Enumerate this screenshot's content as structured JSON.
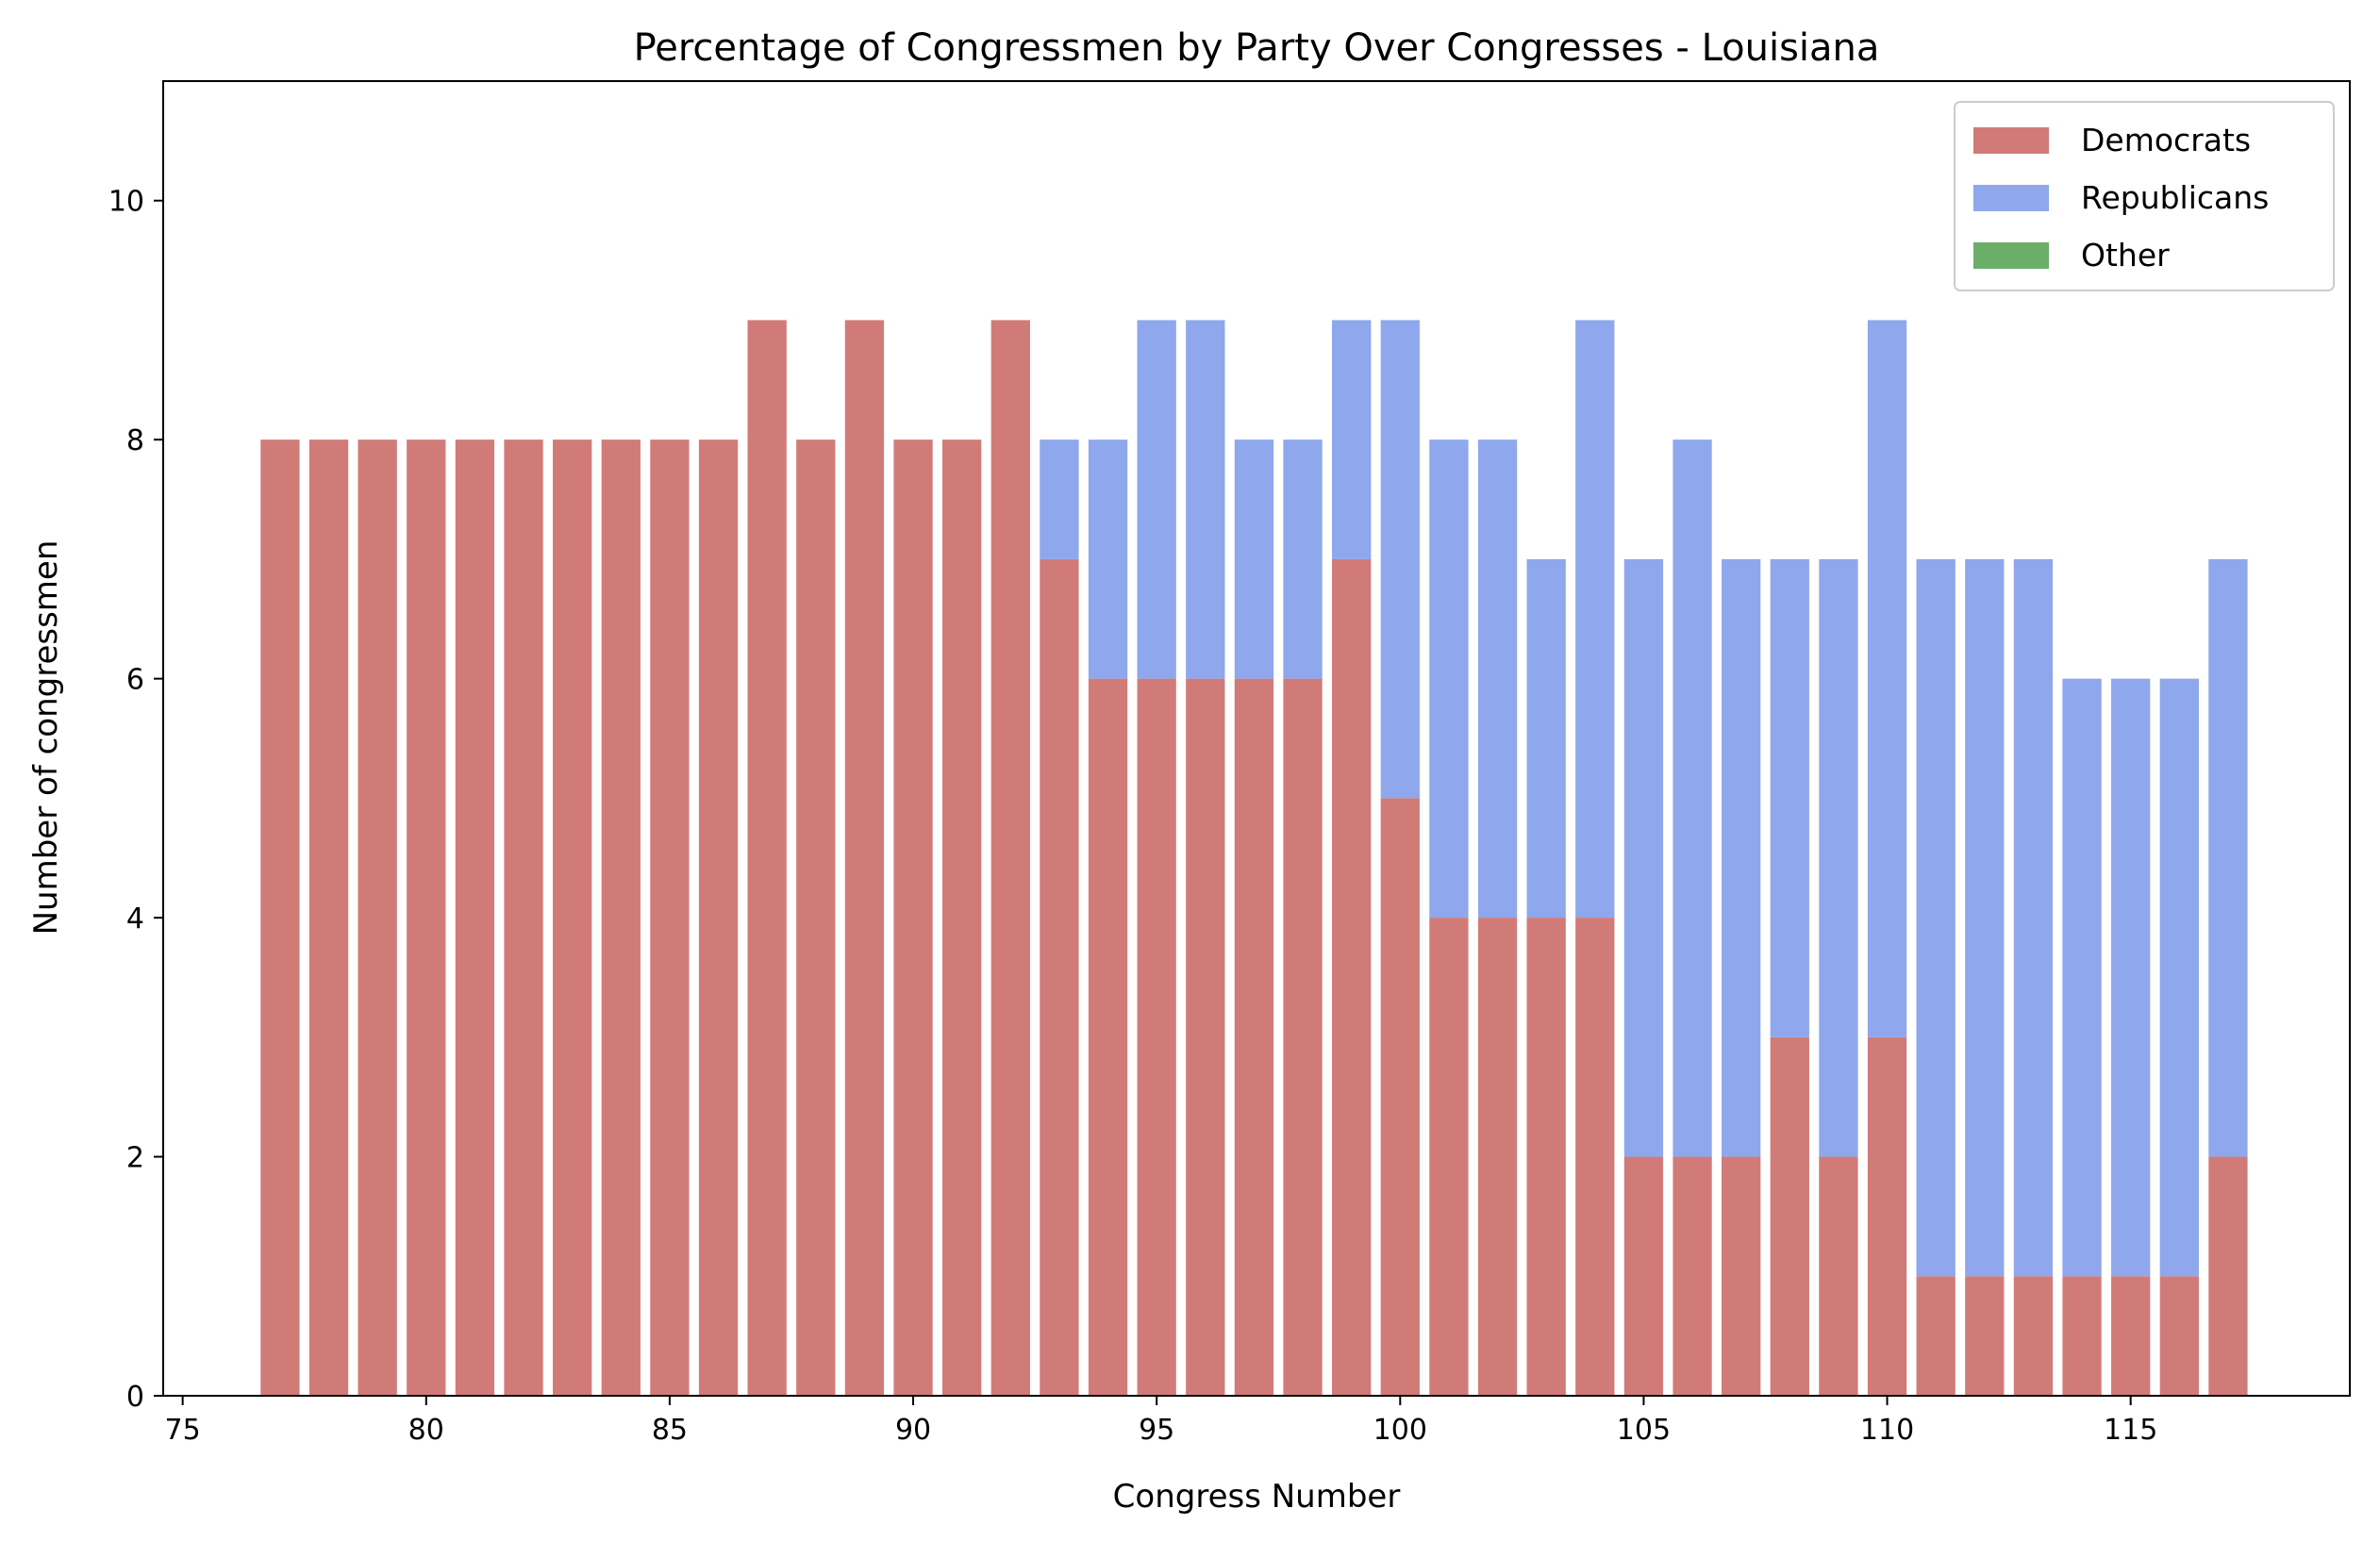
{
  "chart_data": {
    "type": "bar",
    "stacked": true,
    "title": "Percentage of Congressmen by Party Over Congresses - Louisiana",
    "xlabel": "Congress Number",
    "ylabel": "Number of congressmen",
    "xlim": [
      74.6,
      119.5
    ],
    "ylim": [
      0,
      11
    ],
    "x_ticks": [
      75,
      80,
      85,
      90,
      95,
      100,
      105,
      110,
      115
    ],
    "y_ticks": [
      0,
      2,
      4,
      6,
      8,
      10
    ],
    "grid": false,
    "legend_position": "top-right",
    "x": [
      77,
      78,
      79,
      80,
      81,
      82,
      83,
      84,
      85,
      86,
      87,
      88,
      89,
      90,
      91,
      92,
      93,
      94,
      95,
      96,
      97,
      98,
      99,
      100,
      101,
      102,
      103,
      104,
      105,
      106,
      107,
      108,
      109,
      110,
      111,
      112,
      113,
      114,
      115,
      116,
      117
    ],
    "series": [
      {
        "name": "Democrats",
        "color": "#d17b79",
        "values": [
          8,
          8,
          8,
          8,
          8,
          8,
          8,
          8,
          8,
          8,
          9,
          8,
          9,
          8,
          8,
          9,
          7,
          6,
          6,
          6,
          6,
          6,
          7,
          5,
          4,
          4,
          4,
          4,
          2,
          2,
          2,
          3,
          2,
          3,
          1,
          1,
          1,
          1,
          1,
          1,
          2
        ]
      },
      {
        "name": "Republicans",
        "color": "#8ea7ed",
        "values": [
          0,
          0,
          0,
          0,
          0,
          0,
          0,
          0,
          0,
          0,
          0,
          0,
          0,
          0,
          0,
          0,
          1,
          2,
          3,
          3,
          2,
          2,
          2,
          4,
          4,
          4,
          3,
          5,
          5,
          6,
          5,
          4,
          5,
          6,
          6,
          6,
          6,
          5,
          5,
          5,
          5
        ]
      },
      {
        "name": "Other",
        "color": "#6aae6a",
        "values": [
          0,
          0,
          0,
          0,
          0,
          0,
          0,
          0,
          0,
          0,
          0,
          0,
          0,
          0,
          0,
          0,
          0,
          0,
          0,
          0,
          0,
          0,
          0,
          0,
          0,
          0,
          0,
          0,
          0,
          0,
          0,
          0,
          0,
          0,
          0,
          0,
          0,
          0,
          0,
          0,
          0
        ]
      }
    ]
  }
}
